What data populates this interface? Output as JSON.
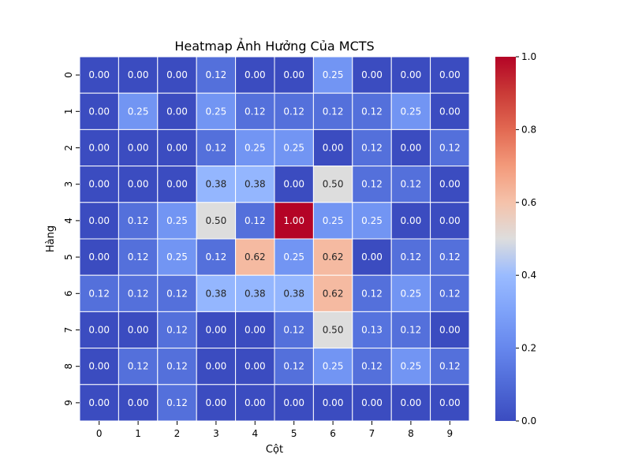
{
  "chart_data": {
    "type": "heatmap",
    "title": "Heatmap Ảnh Hưởng Của MCTS",
    "xlabel": "Cột",
    "ylabel": "Hàng",
    "x_ticks": [
      "0",
      "1",
      "2",
      "3",
      "4",
      "5",
      "6",
      "7",
      "8",
      "9"
    ],
    "y_ticks": [
      "0",
      "1",
      "2",
      "3",
      "4",
      "5",
      "6",
      "7",
      "8",
      "9"
    ],
    "values": [
      [
        0.0,
        0.0,
        0.0,
        0.12,
        0.0,
        0.0,
        0.25,
        0.0,
        0.0,
        0.0
      ],
      [
        0.0,
        0.25,
        0.0,
        0.25,
        0.12,
        0.12,
        0.12,
        0.12,
        0.25,
        0.0
      ],
      [
        0.0,
        0.0,
        0.0,
        0.12,
        0.25,
        0.25,
        0.0,
        0.12,
        0.0,
        0.12
      ],
      [
        0.0,
        0.0,
        0.0,
        0.38,
        0.38,
        0.0,
        0.5,
        0.12,
        0.12,
        0.0
      ],
      [
        0.0,
        0.12,
        0.25,
        0.5,
        0.12,
        1.0,
        0.25,
        0.25,
        0.0,
        0.0
      ],
      [
        0.0,
        0.12,
        0.25,
        0.12,
        0.62,
        0.25,
        0.62,
        0.0,
        0.12,
        0.12
      ],
      [
        0.12,
        0.12,
        0.12,
        0.38,
        0.38,
        0.38,
        0.62,
        0.12,
        0.25,
        0.12
      ],
      [
        0.0,
        0.0,
        0.12,
        0.0,
        0.0,
        0.12,
        0.5,
        0.13,
        0.12,
        0.0
      ],
      [
        0.0,
        0.12,
        0.12,
        0.0,
        0.0,
        0.12,
        0.25,
        0.12,
        0.25,
        0.12
      ],
      [
        0.0,
        0.0,
        0.12,
        0.0,
        0.0,
        0.0,
        0.0,
        0.0,
        0.0,
        0.0
      ]
    ],
    "value_format": "0.00",
    "colormap": "coolwarm",
    "colorbar": {
      "range": [
        0.0,
        1.0
      ],
      "ticks": [
        0.0,
        0.2,
        0.4,
        0.6,
        0.8,
        1.0
      ],
      "tick_labels": [
        "0.0",
        "0.2",
        "0.4",
        "0.6",
        "0.8",
        "1.0"
      ]
    },
    "colors": {
      "low": "#3b4cc0",
      "mid": "#dddddd",
      "high": "#b40426",
      "cell_border": "#ffffff"
    },
    "grid": false,
    "legend": "colorbar-right"
  }
}
